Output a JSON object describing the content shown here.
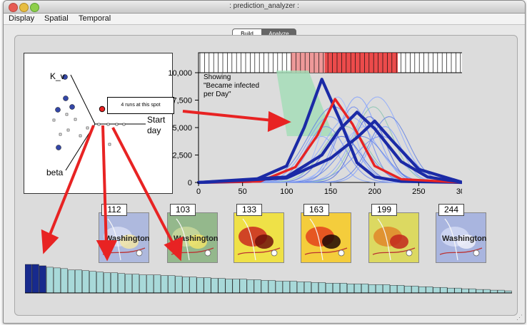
{
  "window": {
    "title": ": prediction_analyzer :"
  },
  "menu": [
    "Display",
    "Spatial",
    "Temporal"
  ],
  "mode_toggle": {
    "options": [
      "Build",
      "Analyze"
    ],
    "selected": "Analyze"
  },
  "scatter": {
    "axis_labels": {
      "k_v": "K_v",
      "start_day": "Start day",
      "beta": "beta"
    },
    "tooltip": "4 runs at this spot"
  },
  "chart": {
    "overlay_text": "Showing \"Became infected per Day\"",
    "y_ticks": [
      "0",
      "2,500",
      "5,000",
      "7,500",
      "10,000"
    ],
    "x_ticks": [
      "0",
      "50",
      "100",
      "150",
      "200",
      "250",
      "300"
    ]
  },
  "chart_data": {
    "type": "line",
    "xlim": [
      0,
      300
    ],
    "ylim": [
      0,
      10000
    ],
    "series": [
      {
        "x": [
          0,
          60,
          100,
          120,
          140,
          160,
          180,
          200,
          230,
          300
        ],
        "values": [
          0,
          100,
          1500,
          5000,
          9400,
          5800,
          1800,
          500,
          100,
          0
        ]
      },
      {
        "x": [
          0,
          70,
          110,
          135,
          155,
          175,
          200,
          230,
          300
        ],
        "values": [
          0,
          100,
          1400,
          4300,
          7600,
          5300,
          1500,
          300,
          0
        ]
      },
      {
        "x": [
          0,
          100,
          140,
          160,
          180,
          200,
          230,
          260,
          300
        ],
        "values": [
          0,
          500,
          2500,
          4800,
          6400,
          4900,
          1900,
          500,
          0
        ]
      },
      {
        "x": [
          0,
          100,
          150,
          180,
          200,
          220,
          250,
          300
        ],
        "values": [
          0,
          400,
          2200,
          4100,
          5600,
          3800,
          1200,
          0
        ]
      }
    ]
  },
  "thumbnails": [
    {
      "day": "112",
      "map_text": "Washington",
      "colors": [
        "#aeb9de",
        "#d6dcf2",
        "#f2e5a6"
      ]
    },
    {
      "day": "103",
      "map_text": "Washington",
      "colors": [
        "#94b88c",
        "#c7d79a",
        "#f0e36a"
      ]
    },
    {
      "day": "133",
      "map_text": "",
      "colors": [
        "#efe147",
        "#cc3321",
        "#70100a"
      ]
    },
    {
      "day": "163",
      "map_text": "",
      "colors": [
        "#f4cd3c",
        "#e44a1e",
        "#1f0805"
      ]
    },
    {
      "day": "199",
      "map_text": "",
      "colors": [
        "#dcd961",
        "#e08b2e",
        "#c2271d"
      ]
    },
    {
      "day": "244",
      "map_text": "Washington",
      "colors": [
        "#a9b5df",
        "#cfd7f3",
        "#eef0fa"
      ]
    }
  ],
  "histogram": {
    "values": [
      41,
      41,
      39,
      37,
      36,
      35,
      33,
      33,
      32,
      31,
      30,
      29,
      29,
      28,
      27,
      27,
      26,
      26,
      26,
      25,
      25,
      24,
      23,
      23,
      22,
      22,
      21,
      21,
      20,
      20,
      20,
      19,
      19,
      18,
      18,
      17,
      17,
      17,
      16,
      16,
      15,
      15,
      14,
      14,
      14,
      13,
      13,
      13,
      12,
      12,
      12,
      11,
      11,
      10,
      10,
      9,
      9,
      8,
      8,
      7,
      7,
      6,
      6,
      5,
      5,
      4,
      4,
      3
    ]
  },
  "colors": {
    "accent": "#e82323",
    "series_dark": "#1b2aa6",
    "series_light": "#5b7ff1",
    "band": "#a2ddb7",
    "histogram": "#a8d9d9"
  }
}
